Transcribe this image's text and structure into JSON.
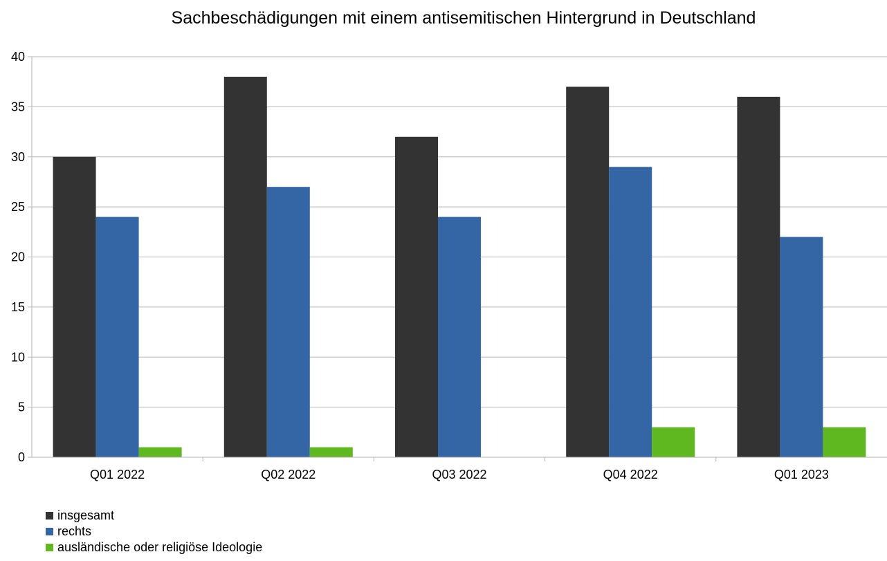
{
  "chart_data": {
    "type": "bar",
    "title": "Sachbeschädigungen mit einem antisemitischen Hintergrund in Deutschland",
    "categories": [
      "Q01 2022",
      "Q02 2022",
      "Q03 2022",
      "Q04 2022",
      "Q01 2023"
    ],
    "series": [
      {
        "name": "insgesamt",
        "color": "#333333",
        "values": [
          30,
          38,
          32,
          37,
          36
        ]
      },
      {
        "name": "rechts",
        "color": "#3465a4",
        "values": [
          24,
          27,
          24,
          29,
          22
        ]
      },
      {
        "name": "ausländische oder religiöse Ideologie",
        "color": "#5fb820",
        "values": [
          1,
          1,
          0,
          3,
          3
        ]
      }
    ],
    "ylim": [
      0,
      40
    ],
    "yticks": [
      0,
      5,
      10,
      15,
      20,
      25,
      30,
      35,
      40
    ],
    "grid": true,
    "legend_position": "bottom-left",
    "xlabel": "",
    "ylabel": ""
  }
}
